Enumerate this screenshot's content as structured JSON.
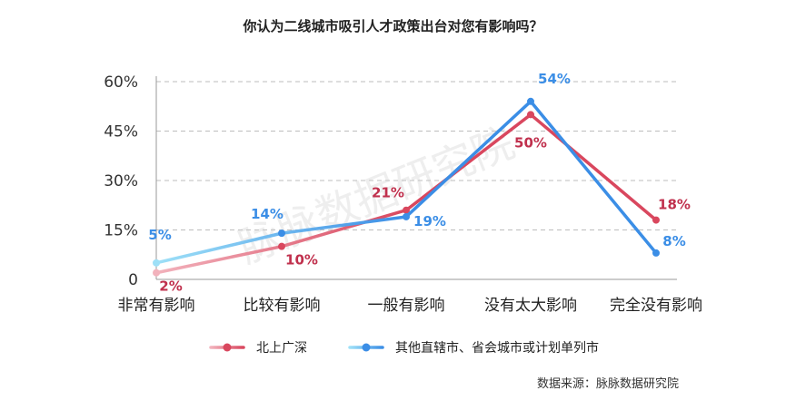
{
  "chart_data": {
    "type": "line",
    "title": "你认为二线城市吸引人才政策出台对您有影响吗？",
    "categories": [
      "非常有影响",
      "比较有影响",
      "一般有影响",
      "没有太大影响",
      "完全没有影响"
    ],
    "ylim": [
      0,
      60
    ],
    "yticks": [
      0,
      15,
      30,
      45,
      60
    ],
    "ytick_labels": [
      "0",
      "15%",
      "30%",
      "45%",
      "60%"
    ],
    "grid": true,
    "legend_position": "bottom",
    "series": [
      {
        "name": "北上广深",
        "values": [
          2,
          10,
          21,
          50,
          18
        ],
        "labels": [
          "2%",
          "10%",
          "21%",
          "50%",
          "18%"
        ],
        "color": "#d9475e",
        "start_color": "#f2b2bc",
        "label_color": "#c0304d"
      },
      {
        "name": "其他直辖市、省会城市或计划单列市",
        "values": [
          5,
          14,
          19,
          54,
          8
        ],
        "labels": [
          "5%",
          "14%",
          "19%",
          "54%",
          "8%"
        ],
        "color": "#3b8ee6",
        "start_color": "#9ee0f7",
        "label_color": "#3b8ee6"
      }
    ]
  },
  "watermark": "脉脉数据研究院",
  "source": "数据来源：脉脉数据研究院"
}
